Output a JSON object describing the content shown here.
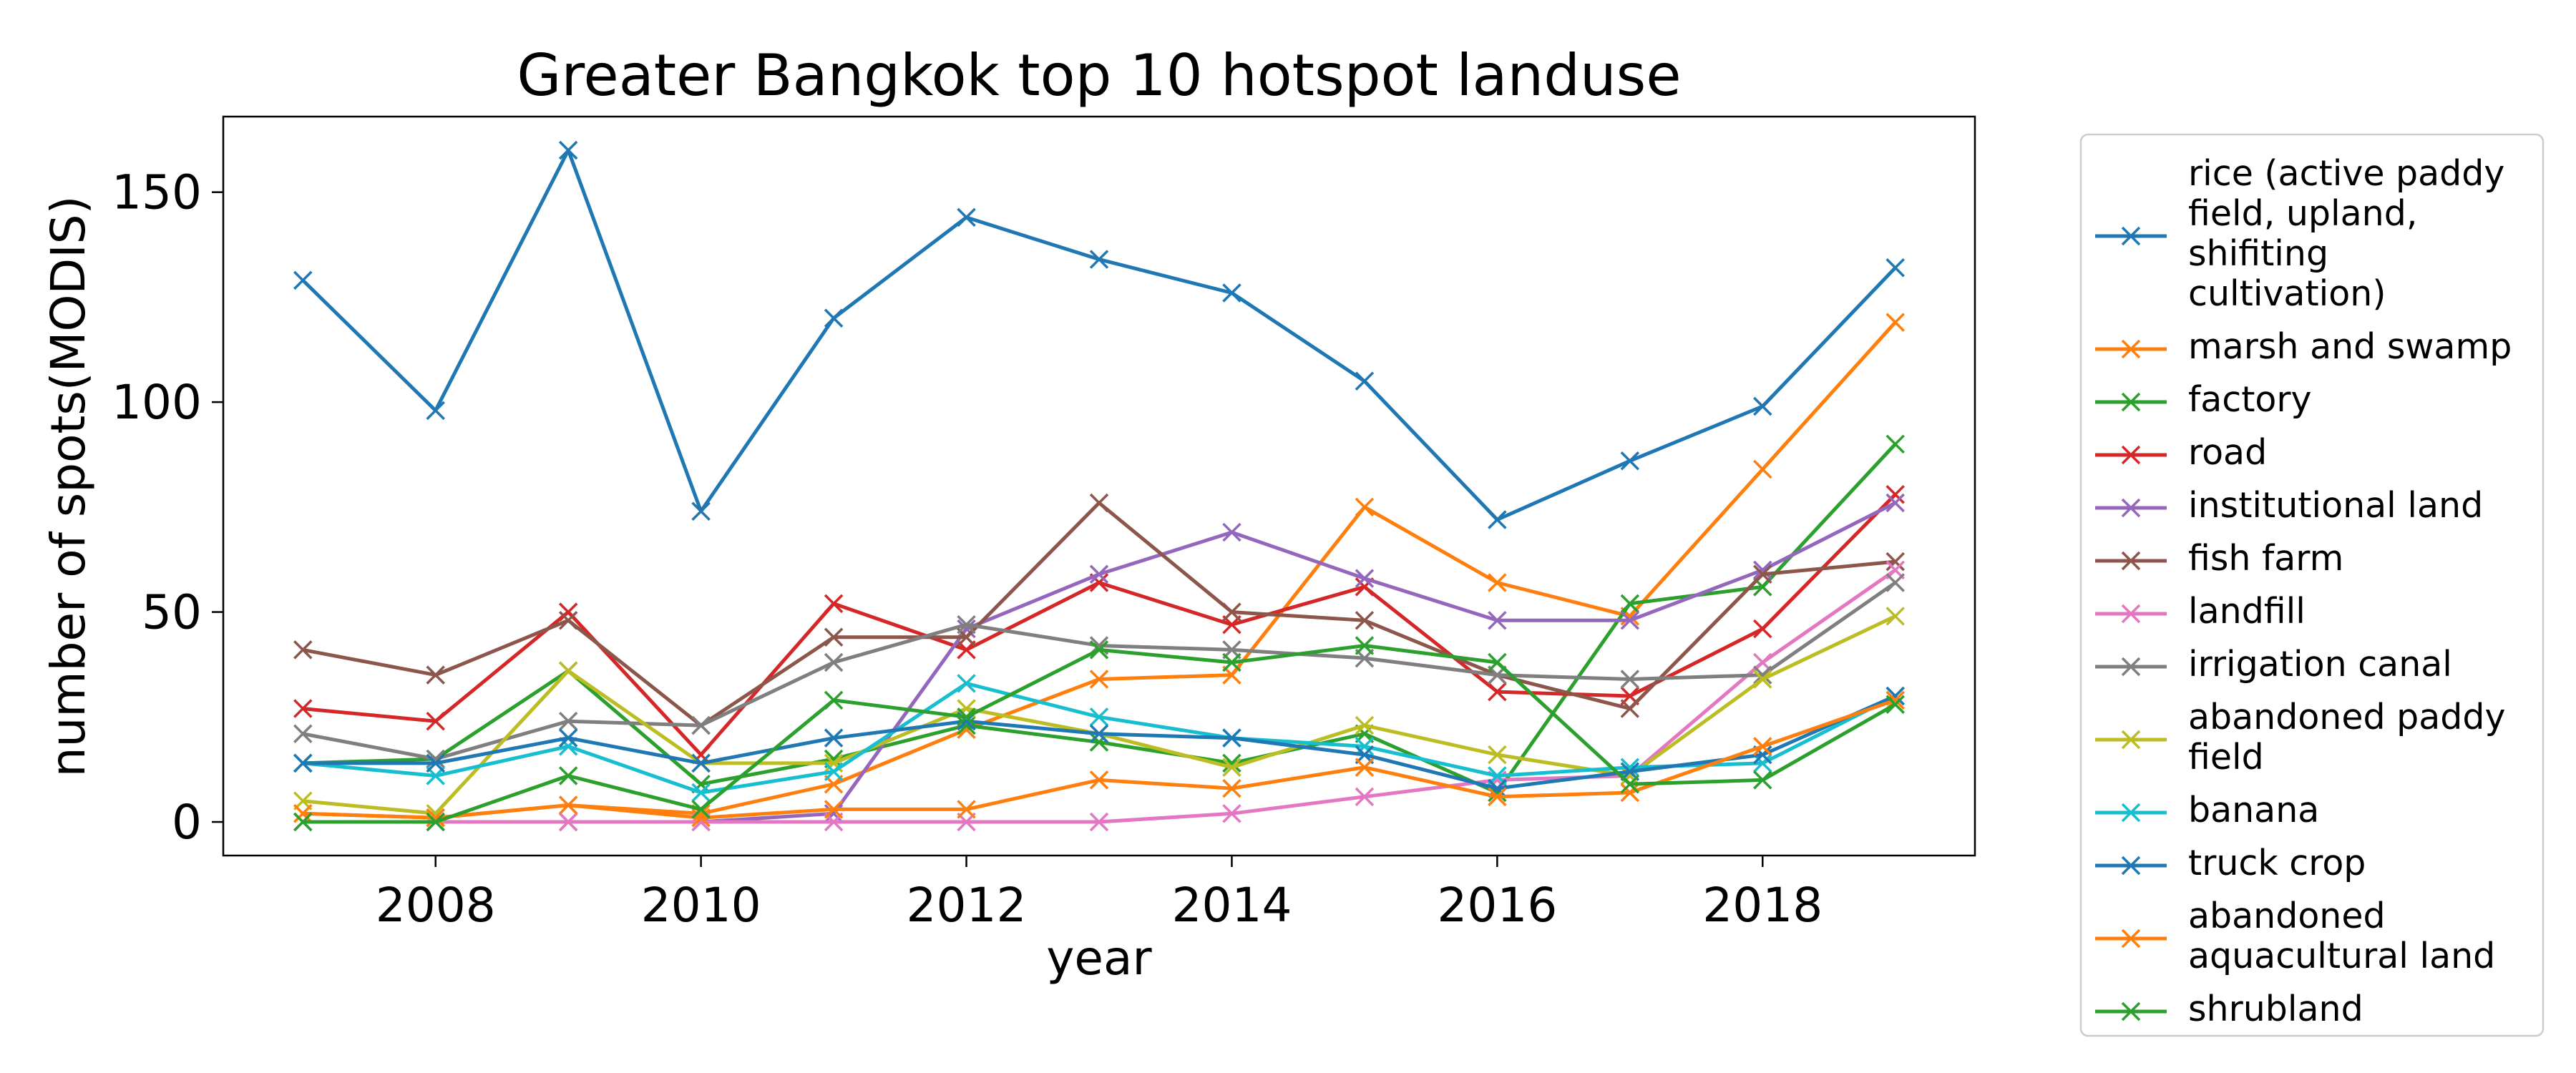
{
  "chart_data": {
    "type": "line",
    "title": "Greater Bangkok top 10 hotspot landuse",
    "xlabel": "year",
    "ylabel": "number of spots(MODIS)",
    "xlim": [
      2006.4,
      2019.6
    ],
    "ylim": [
      -8,
      168
    ],
    "xticks": [
      2008,
      2010,
      2012,
      2014,
      2016,
      2018
    ],
    "yticks": [
      0,
      50,
      100,
      150
    ],
    "grid": false,
    "legend_placement": "outside right",
    "marker": "x",
    "x": [
      2007,
      2008,
      2009,
      2010,
      2011,
      2012,
      2013,
      2014,
      2015,
      2016,
      2017,
      2018,
      2019
    ],
    "series": [
      {
        "name": "rice (active paddy field, upland, shifiting cultivation)",
        "name_lines": [
          "rice (active paddy",
          "field, upland,",
          "shifiting",
          "cultivation)"
        ],
        "color": "#1f77b4",
        "values": [
          129,
          98,
          160,
          74,
          120,
          144,
          134,
          126,
          105,
          72,
          86,
          99,
          132
        ]
      },
      {
        "name": "marsh and swamp",
        "name_lines": [
          "marsh and swamp"
        ],
        "color": "#ff7f0e",
        "values": [
          2,
          1,
          4,
          2,
          9,
          22,
          34,
          35,
          75,
          57,
          49,
          84,
          119
        ]
      },
      {
        "name": "factory",
        "name_lines": [
          "factory"
        ],
        "color": "#2ca02c",
        "values": [
          14,
          15,
          36,
          9,
          15,
          23,
          19,
          14,
          21,
          7,
          52,
          56,
          90
        ]
      },
      {
        "name": "road",
        "name_lines": [
          "road"
        ],
        "color": "#d62728",
        "values": [
          27,
          24,
          50,
          16,
          52,
          41,
          57,
          47,
          56,
          31,
          30,
          46,
          78
        ]
      },
      {
        "name": "institutional land",
        "name_lines": [
          "institutional land"
        ],
        "color": "#9467bd",
        "values": [
          0,
          0,
          0,
          0,
          2,
          46,
          59,
          69,
          58,
          48,
          48,
          60,
          76
        ]
      },
      {
        "name": "fish farm",
        "name_lines": [
          "fish farm"
        ],
        "color": "#8c564b",
        "values": [
          41,
          35,
          48,
          23,
          44,
          44,
          76,
          50,
          48,
          35,
          27,
          59,
          62
        ]
      },
      {
        "name": "landfill",
        "name_lines": [
          "landfill"
        ],
        "color": "#e377c2",
        "values": [
          0,
          0,
          0,
          0,
          0,
          0,
          0,
          2,
          6,
          10,
          11,
          38,
          60
        ]
      },
      {
        "name": "irrigation canal",
        "name_lines": [
          "irrigation canal"
        ],
        "color": "#7f7f7f",
        "values": [
          21,
          15,
          24,
          23,
          38,
          47,
          42,
          41,
          39,
          35,
          34,
          35,
          57
        ]
      },
      {
        "name": "abandoned paddy field",
        "name_lines": [
          "abandoned paddy",
          "field"
        ],
        "color": "#bcbd22",
        "values": [
          5,
          2,
          36,
          14,
          14,
          27,
          21,
          13,
          23,
          16,
          11,
          34,
          49
        ]
      },
      {
        "name": "banana",
        "name_lines": [
          "banana"
        ],
        "color": "#17becf",
        "values": [
          14,
          11,
          18,
          7,
          12,
          33,
          25,
          20,
          18,
          11,
          13,
          14,
          30
        ]
      },
      {
        "name": "truck crop",
        "name_lines": [
          "truck crop"
        ],
        "color": "#1f77b4",
        "values": [
          14,
          14,
          20,
          14,
          20,
          24,
          21,
          20,
          16,
          8,
          12,
          16,
          30
        ]
      },
      {
        "name": "abandoned aquacultural land",
        "name_lines": [
          "abandoned",
          "aquacultural land"
        ],
        "color": "#ff7f0e",
        "values": [
          2,
          1,
          4,
          1,
          3,
          3,
          10,
          8,
          13,
          6,
          7,
          18,
          29
        ]
      },
      {
        "name": "shrubland",
        "name_lines": [
          "shrubland"
        ],
        "color": "#2ca02c",
        "values": [
          0,
          0,
          11,
          3,
          29,
          25,
          41,
          38,
          42,
          38,
          9,
          10,
          28
        ]
      }
    ]
  }
}
